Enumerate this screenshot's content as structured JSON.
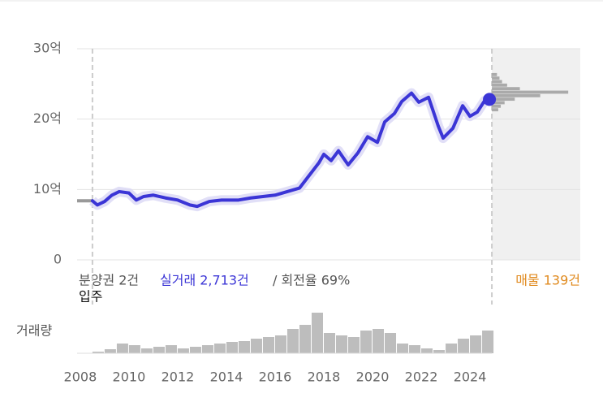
{
  "chart_data": {
    "type": "line",
    "xlim": [
      2007.87,
      2028.53
    ],
    "xticks": [
      2008,
      2010,
      2012,
      2014,
      2016,
      2018,
      2020,
      2022,
      2024
    ],
    "ylim": [
      0,
      30
    ],
    "yticks": [
      0,
      {
        "value": 10,
        "label": "10억"
      },
      {
        "value": 20,
        "label": "20억"
      },
      {
        "value": 30,
        "label": "30억"
      }
    ],
    "grid": true,
    "x": [
      2008.5,
      2008.7,
      2009.0,
      2009.3,
      2009.6,
      2010.0,
      2010.3,
      2010.6,
      2011.0,
      2011.5,
      2012.0,
      2012.5,
      2012.8,
      2013.3,
      2013.8,
      2014.5,
      2015.0,
      2015.5,
      2016.0,
      2016.5,
      2017.0,
      2017.4,
      2017.8,
      2018.0,
      2018.3,
      2018.6,
      2019.0,
      2019.4,
      2019.8,
      2020.2,
      2020.5,
      2020.9,
      2021.2,
      2021.6,
      2021.9,
      2022.3,
      2022.7,
      2022.9,
      2023.3,
      2023.7,
      2024.0,
      2024.3,
      2024.6,
      2024.8
    ],
    "series": [
      {
        "color": "#3b35d6",
        "values": [
          8.4,
          7.8,
          8.3,
          9.2,
          9.7,
          9.5,
          8.5,
          9.0,
          9.2,
          8.8,
          8.5,
          7.8,
          7.6,
          8.3,
          8.5,
          8.5,
          8.8,
          9.0,
          9.2,
          9.7,
          10.2,
          12.0,
          13.8,
          15.0,
          14.1,
          15.5,
          13.5,
          15.2,
          17.5,
          16.7,
          19.6,
          20.8,
          22.5,
          23.7,
          22.4,
          23.1,
          19.0,
          17.3,
          18.7,
          21.9,
          20.4,
          21.0,
          22.6,
          22.8
        ]
      }
    ],
    "annotations": {
      "presale": "분양권 2건",
      "trades": "실거래 2,713건",
      "turnover": "/ 회전율 69%",
      "listing_count": "매물 139건",
      "move_in": "입주"
    },
    "volume": {
      "label": "거래량",
      "color": "#bdbdbd",
      "ylim": [
        0,
        55
      ],
      "x": [
        2008.5,
        2009.0,
        2009.5,
        2010.0,
        2010.5,
        2011.0,
        2011.5,
        2012.0,
        2012.5,
        2013.0,
        2013.5,
        2014.0,
        2014.5,
        2015.0,
        2015.5,
        2016.0,
        2016.5,
        2017.0,
        2017.5,
        2018.0,
        2018.5,
        2019.0,
        2019.5,
        2020.0,
        2020.5,
        2021.0,
        2021.5,
        2022.0,
        2022.5,
        2023.0,
        2023.5,
        2024.0,
        2024.5
      ],
      "values": [
        2,
        5,
        12,
        10,
        6,
        8,
        10,
        6,
        8,
        10,
        12,
        14,
        15,
        18,
        20,
        22,
        30,
        35,
        50,
        25,
        22,
        20,
        28,
        30,
        25,
        12,
        10,
        6,
        4,
        12,
        18,
        22,
        28
      ]
    },
    "listings": {
      "color": "#aaaaaa",
      "xlim": [
        0,
        65
      ],
      "prices": [
        21.3,
        21.8,
        22.3,
        22.8,
        23.3,
        23.8,
        24.3,
        24.8,
        25.3,
        25.8,
        26.3
      ],
      "counts": [
        5,
        7,
        10,
        18,
        38,
        60,
        22,
        12,
        8,
        6,
        4
      ]
    }
  }
}
